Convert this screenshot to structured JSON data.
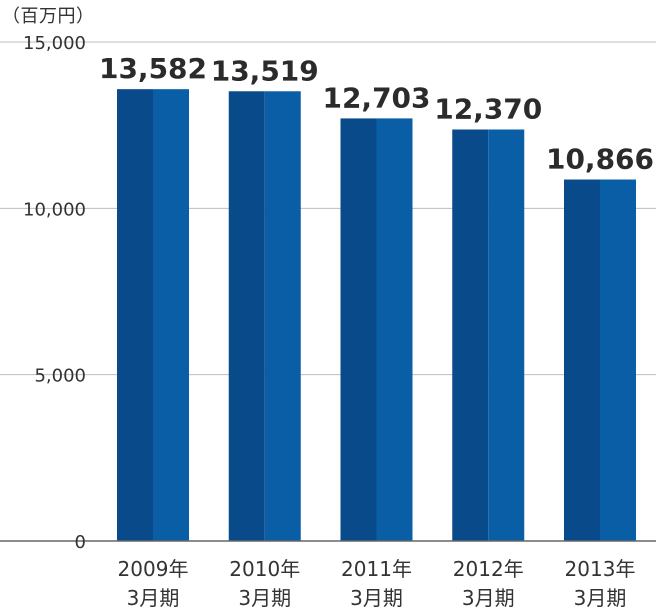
{
  "unit_label": "（百万円）",
  "colors": {
    "bar_dark": "#084a8a",
    "bar_light": "#0a5ea6",
    "grid": "#bdbdbd",
    "axis": "#666666",
    "text": "#333333",
    "value_text": "#2b2b2b"
  },
  "chart_data": {
    "type": "bar",
    "categories": [
      [
        "2009年",
        "3月期"
      ],
      [
        "2010年",
        "3月期"
      ],
      [
        "2011年",
        "3月期"
      ],
      [
        "2012年",
        "3月期"
      ],
      [
        "2013年",
        "3月期"
      ]
    ],
    "values": [
      13582,
      13519,
      12703,
      12370,
      10866
    ],
    "value_labels": [
      "13,582",
      "13,519",
      "12,703",
      "12,370",
      "10,866"
    ],
    "ylim": [
      0,
      15000
    ],
    "yticks": [
      0,
      5000,
      10000,
      15000
    ],
    "ytick_labels": [
      "0",
      "5,000",
      "10,000",
      "15,000"
    ],
    "grid": true,
    "title": "",
    "xlabel": "",
    "ylabel": ""
  }
}
